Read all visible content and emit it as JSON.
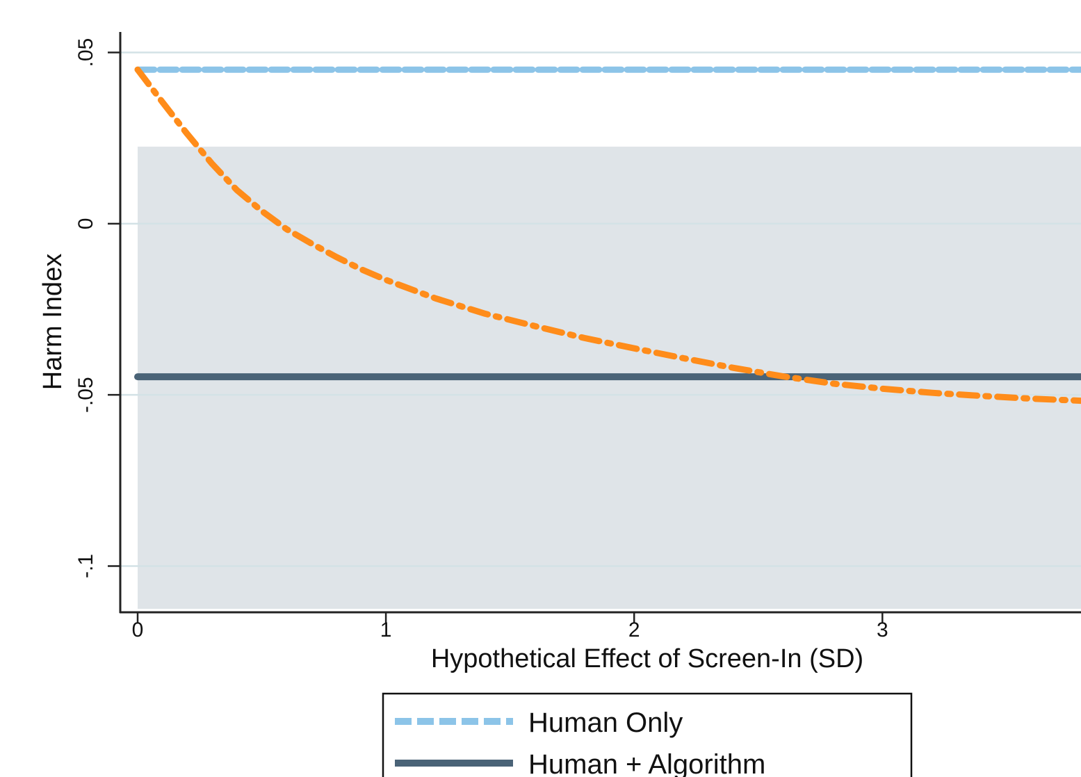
{
  "chart_data": {
    "type": "line",
    "xlabel": "Hypothetical Effect of Screen-In (SD)",
    "ylabel": "Harm Index",
    "xlim": [
      -0.07,
      3.8
    ],
    "ylim": [
      -0.1135,
      0.056
    ],
    "x_ticks": [
      {
        "value": 0,
        "label": "0"
      },
      {
        "value": 1,
        "label": "1"
      },
      {
        "value": 2,
        "label": "2"
      },
      {
        "value": 3,
        "label": "3"
      }
    ],
    "y_ticks": [
      {
        "value": 0.05,
        "label": ".05"
      },
      {
        "value": 0,
        "label": "0"
      },
      {
        "value": -0.05,
        "label": "-.05"
      },
      {
        "value": -0.1,
        "label": "-.1"
      }
    ],
    "grid": true,
    "shaded_band": {
      "x": [
        0,
        3.8
      ],
      "y": [
        -0.1125,
        0.0225
      ],
      "color": "#dfe4e8"
    },
    "series": [
      {
        "name": "Human Only",
        "style": "dashed",
        "color": "#8cc4e8",
        "x": [
          0,
          3.8
        ],
        "y": [
          0.045,
          0.045
        ]
      },
      {
        "name": "Human + Algorithm",
        "style": "solid",
        "color": "#4a6377",
        "x": [
          0,
          3.8
        ],
        "y": [
          -0.0447,
          -0.0447
        ]
      },
      {
        "name": "",
        "style": "dash-dot",
        "color": "#ff8c1a",
        "x": [
          0,
          0.1,
          0.2,
          0.3,
          0.4,
          0.5,
          0.6,
          0.7,
          0.8,
          0.9,
          1.0,
          1.2,
          1.4,
          1.6,
          1.8,
          2.0,
          2.2,
          2.4,
          2.6,
          2.8,
          3.0,
          3.2,
          3.4,
          3.6,
          3.8
        ],
        "y": [
          0.045,
          0.0355,
          0.0262,
          0.0175,
          0.0098,
          0.0037,
          -0.0016,
          -0.0058,
          -0.0097,
          -0.0133,
          -0.0164,
          -0.0218,
          -0.0263,
          -0.0299,
          -0.0334,
          -0.0364,
          -0.0393,
          -0.0421,
          -0.0446,
          -0.0467,
          -0.0482,
          -0.0494,
          -0.0503,
          -0.0511,
          -0.0517
        ]
      }
    ],
    "legend": {
      "position": "bottom"
    }
  }
}
